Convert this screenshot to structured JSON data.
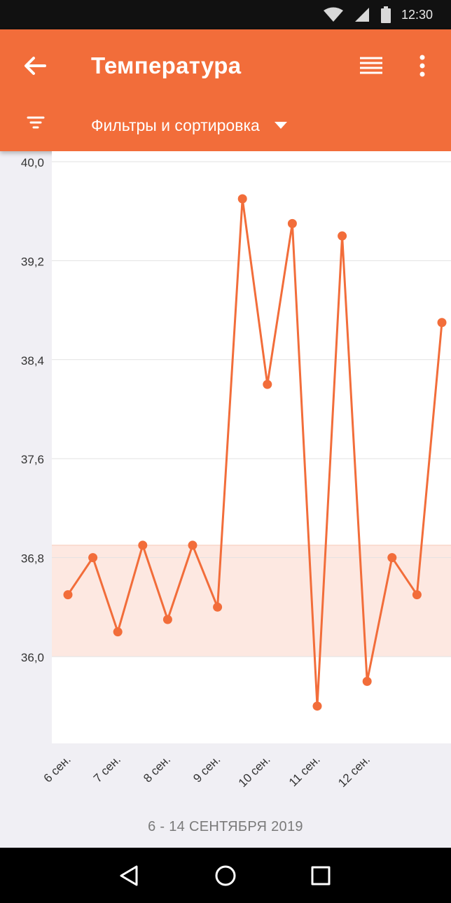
{
  "status_bar": {
    "time": "12:30"
  },
  "app_bar": {
    "title": "Температура",
    "filter_label": "Фильтры и сортировка"
  },
  "colors": {
    "accent": "#f26d3a",
    "normal_band": "#fde8e1",
    "chart_bg": "#ffffff",
    "page_bg": "#f0eff4"
  },
  "icons": {
    "back": "arrow-left-icon",
    "list": "list-view-icon",
    "more": "more-vertical-icon",
    "filter": "filter-icon",
    "dropdown": "caret-down-icon",
    "nav_back": "triangle-back-icon",
    "nav_home": "circle-home-icon",
    "nav_recents": "square-recents-icon"
  },
  "chart_data": {
    "type": "line",
    "title": "",
    "xlabel": "",
    "ylabel": "",
    "ylim": [
      35.3,
      40.0
    ],
    "y_ticks": [
      "40,0",
      "39,2",
      "38,4",
      "37,6",
      "36,8",
      "36,0"
    ],
    "y_tick_values": [
      40.0,
      39.2,
      38.4,
      37.6,
      36.8,
      36.0
    ],
    "x_ticks": [
      "6 сен.",
      "7 сен.",
      "8 сен.",
      "9 сен.",
      "10 сен.",
      "11 сен.",
      "12 сен."
    ],
    "x_tick_positions": [
      0,
      2,
      4,
      6,
      8,
      10,
      12
    ],
    "normal_range": [
      36.0,
      36.9
    ],
    "grid": true,
    "series": [
      {
        "values": [
          36.5,
          36.8,
          36.2,
          36.9,
          36.3,
          36.9,
          36.4,
          39.7,
          38.2,
          39.5,
          35.6,
          39.4,
          35.8,
          36.8,
          36.5,
          38.7
        ]
      }
    ]
  },
  "footer": {
    "date_range": "6 - 14 СЕНТЯБРЯ 2019"
  }
}
